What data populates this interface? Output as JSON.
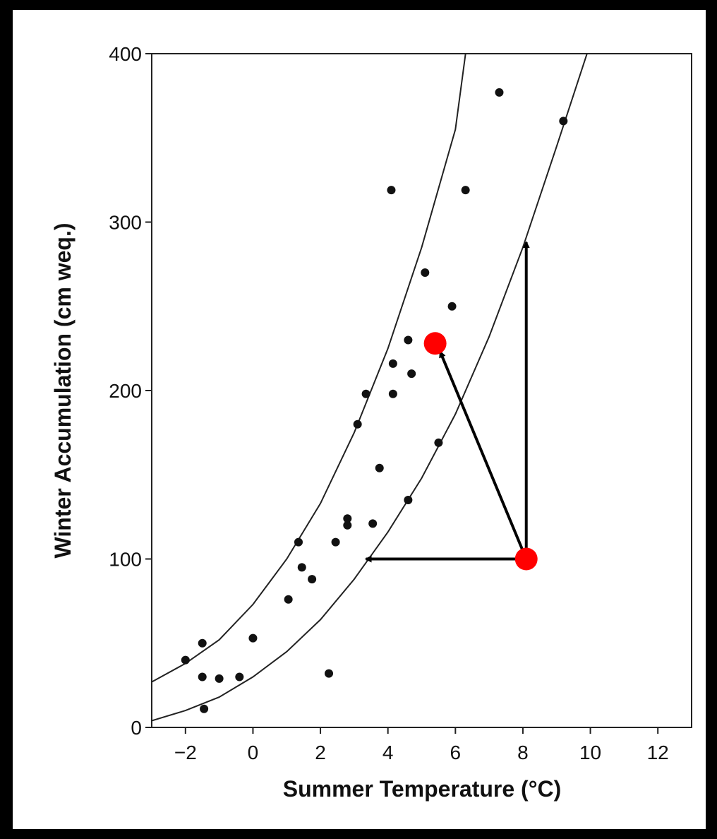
{
  "chart_data": {
    "type": "scatter",
    "title": "",
    "xlabel": "Summer Temperature (°C)",
    "ylabel": "Winter Accumulation (cm weq.)",
    "xlim": [
      -3,
      13
    ],
    "ylim": [
      0,
      400
    ],
    "xticks": [
      -2,
      0,
      2,
      4,
      6,
      8,
      10,
      12
    ],
    "yticks": [
      0,
      100,
      200,
      300,
      400
    ],
    "grid": false,
    "legend": "none",
    "points": [
      {
        "x": -2.0,
        "y": 40
      },
      {
        "x": -1.5,
        "y": 50
      },
      {
        "x": -1.5,
        "y": 30
      },
      {
        "x": -1.45,
        "y": 11
      },
      {
        "x": -1.0,
        "y": 29
      },
      {
        "x": -0.4,
        "y": 30
      },
      {
        "x": 0.0,
        "y": 53
      },
      {
        "x": 1.05,
        "y": 76
      },
      {
        "x": 1.35,
        "y": 110
      },
      {
        "x": 1.45,
        "y": 95
      },
      {
        "x": 1.75,
        "y": 88
      },
      {
        "x": 2.25,
        "y": 32
      },
      {
        "x": 2.45,
        "y": 110
      },
      {
        "x": 2.8,
        "y": 120
      },
      {
        "x": 2.8,
        "y": 124
      },
      {
        "x": 3.1,
        "y": 180
      },
      {
        "x": 3.35,
        "y": 198
      },
      {
        "x": 3.55,
        "y": 121
      },
      {
        "x": 3.75,
        "y": 154
      },
      {
        "x": 4.1,
        "y": 319
      },
      {
        "x": 4.15,
        "y": 216
      },
      {
        "x": 4.15,
        "y": 198
      },
      {
        "x": 4.6,
        "y": 230
      },
      {
        "x": 4.6,
        "y": 135
      },
      {
        "x": 4.7,
        "y": 210
      },
      {
        "x": 5.1,
        "y": 270
      },
      {
        "x": 5.5,
        "y": 169
      },
      {
        "x": 5.9,
        "y": 250
      },
      {
        "x": 6.3,
        "y": 319
      },
      {
        "x": 7.3,
        "y": 377
      },
      {
        "x": 9.2,
        "y": 360
      }
    ],
    "envelope_curves": [
      {
        "points": [
          [
            -3,
            27
          ],
          [
            -2,
            38
          ],
          [
            -1,
            52
          ],
          [
            0,
            73
          ],
          [
            1,
            100
          ],
          [
            2,
            133
          ],
          [
            3,
            175
          ],
          [
            4,
            225
          ],
          [
            5,
            285
          ],
          [
            6,
            355
          ],
          [
            6.3,
            400
          ]
        ]
      },
      {
        "points": [
          [
            -3,
            4
          ],
          [
            -2,
            10
          ],
          [
            -1,
            18
          ],
          [
            0,
            30
          ],
          [
            1,
            45
          ],
          [
            2,
            64
          ],
          [
            3,
            88
          ],
          [
            4,
            116
          ],
          [
            5,
            148
          ],
          [
            6,
            186
          ],
          [
            7,
            232
          ],
          [
            8,
            285
          ],
          [
            9,
            345
          ],
          [
            9.9,
            400
          ]
        ]
      }
    ],
    "highlight_points": [
      {
        "x": 8.1,
        "y": 100,
        "color": "#ff0000"
      },
      {
        "x": 5.4,
        "y": 228,
        "color": "#ff0000"
      }
    ],
    "arrows": [
      {
        "from": [
          8.1,
          100
        ],
        "to": [
          3.35,
          100
        ]
      },
      {
        "from": [
          8.1,
          100
        ],
        "to": [
          8.1,
          288
        ]
      },
      {
        "from": [
          8.1,
          100
        ],
        "to": [
          5.55,
          223
        ]
      }
    ]
  }
}
